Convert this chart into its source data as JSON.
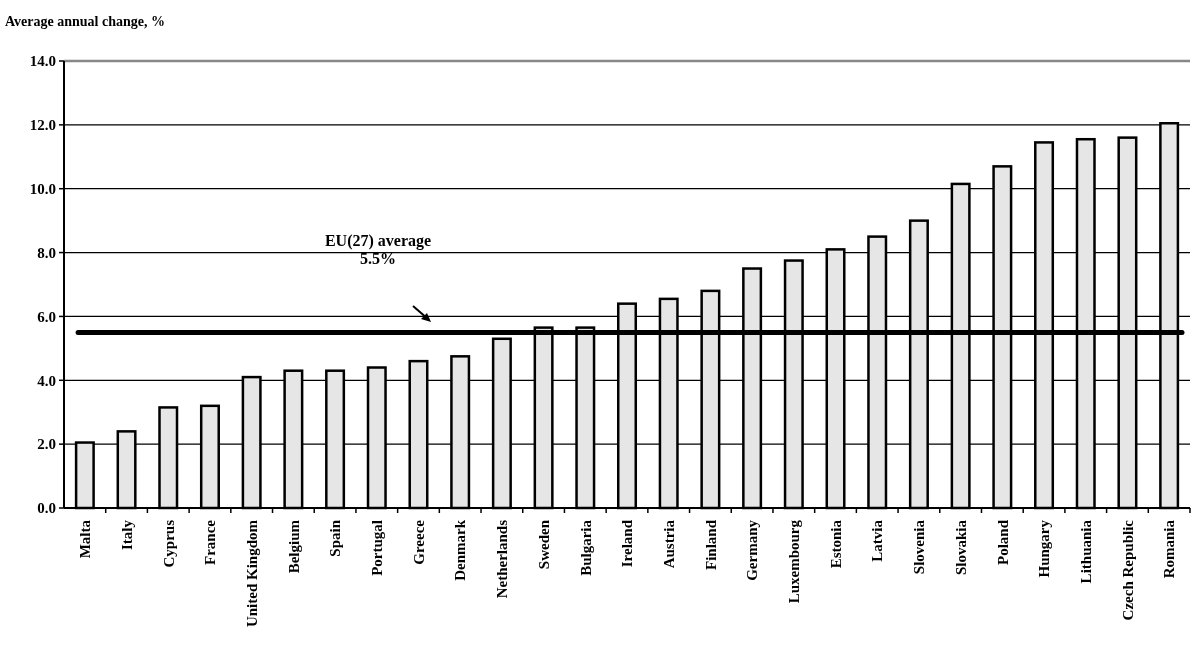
{
  "chart_data": {
    "type": "bar",
    "ylabel": "Average annual change, %",
    "categories": [
      "Malta",
      "Italy",
      "Cyprus",
      "France",
      "United Kingdom",
      "Belgium",
      "Spain",
      "Portugal",
      "Greece",
      "Denmark",
      "Netherlands",
      "Sweden",
      "Bulgaria",
      "Ireland",
      "Austria",
      "Finland",
      "Germany",
      "Luxembourg",
      "Estonia",
      "Latvia",
      "Slovenia",
      "Slovakia",
      "Poland",
      "Hungary",
      "Lithuania",
      "Czech Republic",
      "Romania"
    ],
    "values": [
      2.05,
      2.4,
      3.15,
      3.2,
      4.1,
      4.3,
      4.3,
      4.4,
      4.6,
      4.75,
      5.3,
      5.65,
      5.65,
      6.4,
      6.55,
      6.8,
      7.5,
      7.75,
      8.1,
      8.5,
      9.0,
      10.15,
      10.7,
      11.45,
      11.55,
      11.6,
      12.05
    ],
    "color": "#e6e6e6",
    "ylim": [
      0,
      14
    ],
    "yticks": [
      {
        "value": 0,
        "label": "0.0"
      },
      {
        "value": 2,
        "label": "2.0"
      },
      {
        "value": 4,
        "label": "4.0"
      },
      {
        "value": 6,
        "label": "6.0"
      },
      {
        "value": 8,
        "label": "8.0"
      },
      {
        "value": 10,
        "label": "10.0"
      },
      {
        "value": 12,
        "label": "12.0"
      },
      {
        "value": 14,
        "label": "14.0"
      }
    ],
    "grid": "y",
    "ref_lines": [
      {
        "axis": "y",
        "value": 5.5,
        "label": "EU(27) average\n5.5%",
        "color": "#000000"
      }
    ]
  }
}
